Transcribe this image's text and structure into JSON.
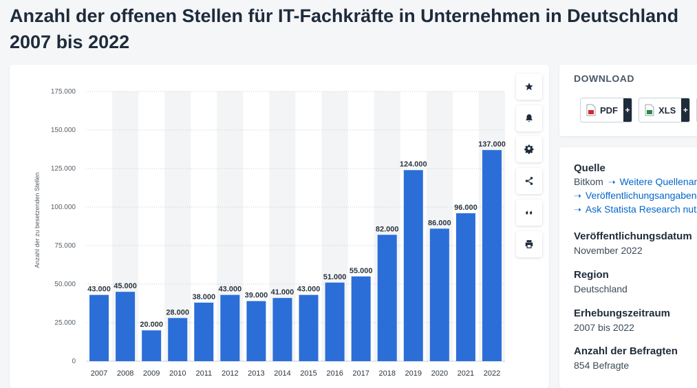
{
  "page": {
    "title": "Anzahl der offenen Stellen für IT-Fachkräfte in Unternehmen in Deutschland 2007 bis 2022"
  },
  "toolbar": {
    "buttons": [
      {
        "name": "favorite-button",
        "icon": "star-icon"
      },
      {
        "name": "notification-button",
        "icon": "bell-icon"
      },
      {
        "name": "settings-button",
        "icon": "gear-icon"
      },
      {
        "name": "share-button",
        "icon": "share-icon"
      },
      {
        "name": "cite-button",
        "icon": "quote-icon"
      },
      {
        "name": "print-button",
        "icon": "printer-icon"
      }
    ]
  },
  "download": {
    "title": "DOWNLOAD",
    "pdf_label": "PDF",
    "xls_label": "XLS",
    "plus": "+"
  },
  "info": {
    "source_head": "Quelle",
    "source_name": "Bitkom",
    "more_sources": "Weitere Quellenangaben",
    "publication_info": "Veröffentlichungsangaben",
    "ask_research": "Ask Statista Research nutzen",
    "pub_date_head": "Veröffentlichungsdatum",
    "pub_date": "November 2022",
    "region_head": "Region",
    "region": "Deutschland",
    "period_head": "Erhebungszeitraum",
    "period": "2007 bis 2022",
    "respondents_head": "Anzahl der Befragten",
    "respondents": "854 Befragte"
  },
  "colors": {
    "bar": "#2b6ed8",
    "band": "#f3f4f5",
    "grid": "#c8ccd0",
    "pdf_red": "#d42a2a",
    "xls_green": "#2e8b3a"
  },
  "chart_data": {
    "type": "bar",
    "title": "",
    "xlabel": "",
    "ylabel": "Anzahl der zu besetzenden Stellen",
    "categories": [
      "2007",
      "2008",
      "2009",
      "2010",
      "2011",
      "2012",
      "2013",
      "2014",
      "2015",
      "2016",
      "2017",
      "2018",
      "2019",
      "2020",
      "2021",
      "2022"
    ],
    "values": [
      43000,
      45000,
      20000,
      28000,
      38000,
      43000,
      39000,
      41000,
      43000,
      51000,
      55000,
      82000,
      124000,
      86000,
      96000,
      137000
    ],
    "value_labels": [
      "43.000",
      "45.000",
      "20.000",
      "28.000",
      "38.000",
      "43.000",
      "39.000",
      "41.000",
      "43.000",
      "51.000",
      "55.000",
      "82.000",
      "124.000",
      "86.000",
      "96.000",
      "137.000"
    ],
    "yticks": [
      0,
      25000,
      50000,
      75000,
      100000,
      125000,
      150000,
      175000
    ],
    "ytick_labels": [
      "0",
      "25.000",
      "50.000",
      "75.000",
      "100.000",
      "125.000",
      "150.000",
      "175.000"
    ],
    "ylim": [
      0,
      175000
    ],
    "grid": true,
    "legend": "none"
  }
}
